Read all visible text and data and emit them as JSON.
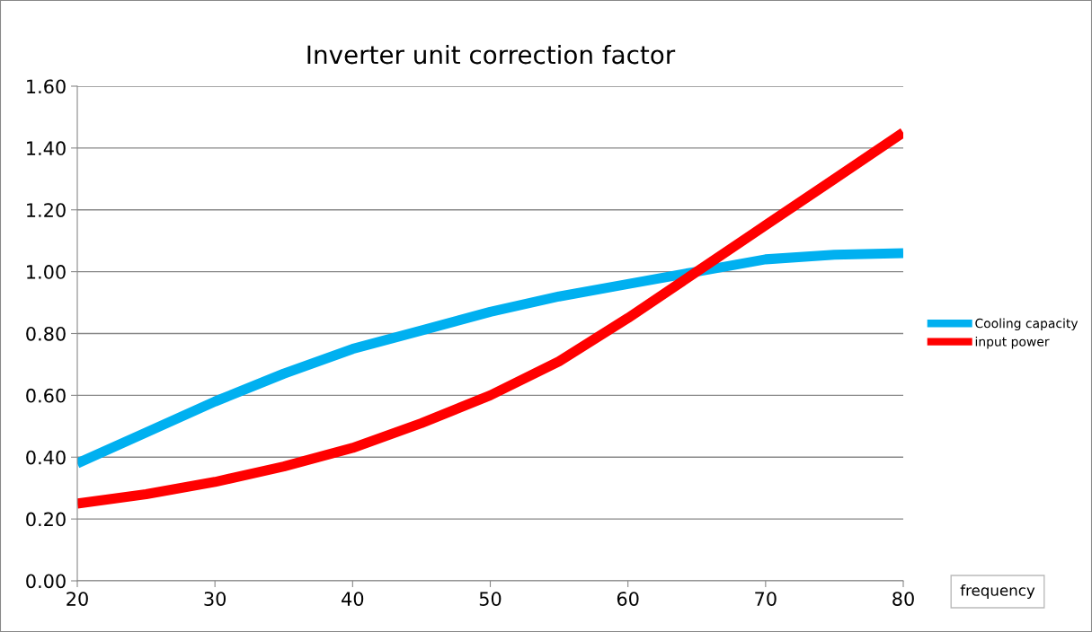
{
  "chart_data": {
    "type": "line",
    "title": "Inverter unit correction factor",
    "xlabel": "frequency",
    "x": [
      20,
      25,
      30,
      35,
      40,
      45,
      50,
      55,
      60,
      65,
      70,
      75,
      80
    ],
    "series": [
      {
        "name": "Cooling capacity",
        "color": "#00b0f0",
        "values": [
          0.38,
          0.48,
          0.58,
          0.67,
          0.75,
          0.81,
          0.87,
          0.92,
          0.96,
          1.0,
          1.04,
          1.055,
          1.06
        ]
      },
      {
        "name": "input power",
        "color": "#ff0000",
        "values": [
          0.25,
          0.28,
          0.32,
          0.37,
          0.43,
          0.51,
          0.6,
          0.71,
          0.85,
          1.0,
          1.15,
          1.3,
          1.45
        ]
      }
    ],
    "xlim": [
      20,
      80
    ],
    "xticks": [
      20,
      30,
      40,
      50,
      60,
      70,
      80
    ],
    "ylim": [
      0,
      1.6
    ],
    "yticks": [
      {
        "value": 0,
        "label": "0.00"
      },
      {
        "value": 0.2,
        "label": "0.20"
      },
      {
        "value": 0.4,
        "label": "0.40"
      },
      {
        "value": 0.6,
        "label": "0.60"
      },
      {
        "value": 0.8,
        "label": "0.80"
      },
      {
        "value": 1.0,
        "label": "1.00"
      },
      {
        "value": 1.2,
        "label": "1.20"
      },
      {
        "value": 1.4,
        "label": "1.40"
      },
      {
        "value": 1.6,
        "label": "1.60"
      }
    ],
    "grid": "y",
    "legend": "right",
    "line_style": "solid",
    "marker": "none"
  }
}
